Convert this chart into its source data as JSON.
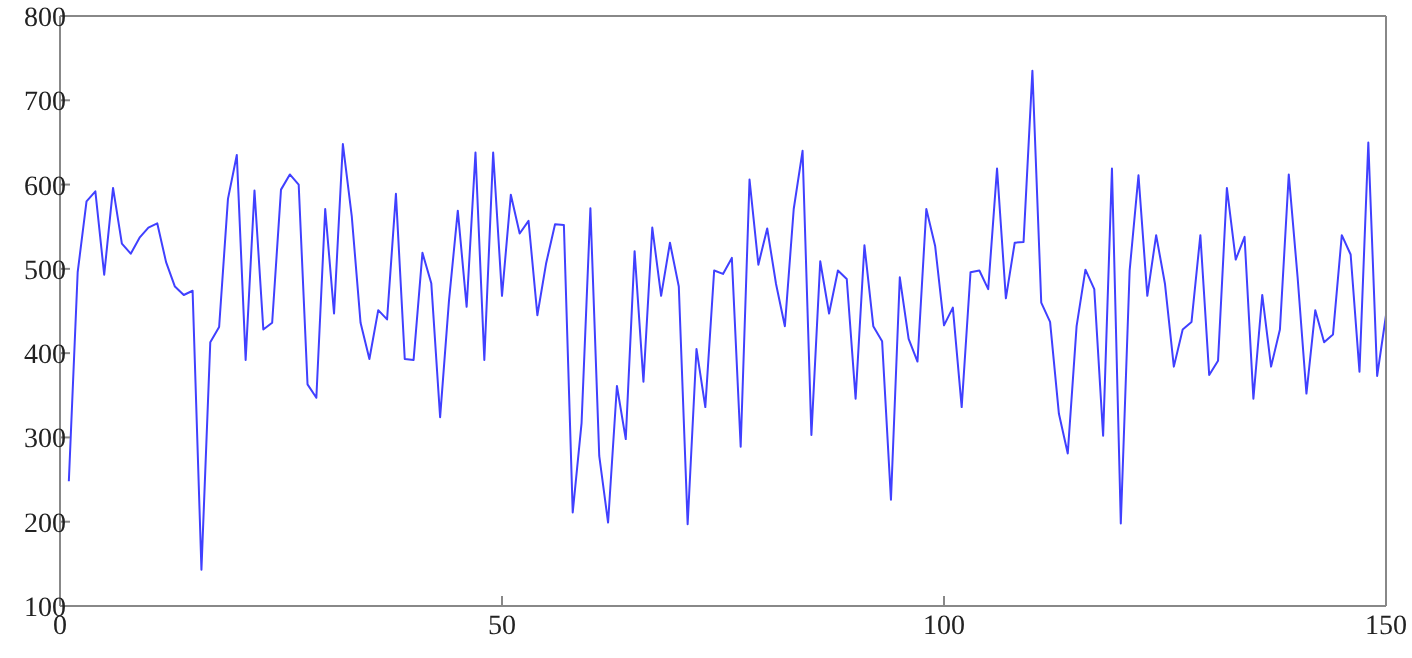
{
  "chart_data": {
    "type": "line",
    "x": [
      1,
      2,
      3,
      4,
      5,
      6,
      7,
      8,
      9,
      10,
      11,
      12,
      13,
      14,
      15,
      16,
      17,
      18,
      19,
      20,
      21,
      22,
      23,
      24,
      25,
      26,
      27,
      28,
      29,
      30,
      31,
      32,
      33,
      34,
      35,
      36,
      37,
      38,
      39,
      40,
      41,
      42,
      43,
      44,
      45,
      46,
      47,
      48,
      49,
      50,
      51,
      52,
      53,
      54,
      55,
      56,
      57,
      58,
      59,
      60,
      61,
      62,
      63,
      64,
      65,
      66,
      67,
      68,
      69,
      70,
      71,
      72,
      73,
      74,
      75,
      76,
      77,
      78,
      79,
      80,
      81,
      82,
      83,
      84,
      85,
      86,
      87,
      88,
      89,
      90,
      91,
      92,
      93,
      94,
      95,
      96,
      97,
      98,
      99,
      100,
      101,
      102,
      103,
      104,
      105,
      106,
      107,
      108,
      109,
      110,
      111,
      112,
      113,
      114,
      115,
      116,
      117,
      118,
      119,
      120,
      121,
      122,
      123,
      124,
      125,
      126,
      127,
      128,
      129,
      130,
      131,
      132,
      133,
      134,
      135,
      136,
      137,
      138,
      139,
      140,
      141,
      142,
      143,
      144,
      145,
      146,
      147,
      148,
      149,
      150
    ],
    "series": [
      {
        "color": "#4040ff",
        "values": [
          248,
          496,
          580,
          592,
          493,
          596,
          530,
          518,
          537,
          549,
          554,
          508,
          479,
          469,
          474,
          143,
          413,
          431,
          583,
          635,
          392,
          593,
          428,
          436,
          594,
          612,
          600,
          363,
          347,
          571,
          447,
          648,
          563,
          436,
          393,
          451,
          440,
          589,
          393,
          392,
          519,
          483,
          324,
          462,
          569,
          455,
          638,
          392,
          638,
          468,
          588,
          542,
          557,
          445,
          507,
          553,
          552,
          211,
          317,
          572,
          278,
          199,
          361,
          298,
          521,
          366,
          549,
          468,
          531,
          479,
          197,
          405,
          336,
          498,
          494,
          513,
          289,
          606,
          505,
          548,
          482,
          432,
          571,
          640,
          303,
          509,
          447,
          498,
          488,
          346,
          528,
          432,
          414,
          226,
          490,
          417,
          390,
          571,
          527,
          433,
          454,
          336,
          496,
          498,
          476,
          619,
          465,
          531,
          532,
          735,
          460,
          437,
          328,
          281,
          432,
          499,
          476,
          302,
          619,
          198,
          498,
          611,
          468,
          540,
          482,
          384,
          428,
          437,
          540,
          374,
          391,
          596,
          511,
          538,
          346,
          469,
          384,
          428,
          612,
          490,
          352,
          451,
          413,
          422,
          540,
          517,
          378,
          650,
          373,
          445
        ]
      }
    ],
    "xlim": [
      0,
      150
    ],
    "xticks": [
      0,
      50,
      100,
      150
    ],
    "ylim": [
      100,
      800
    ],
    "yticks": [
      100,
      200,
      300,
      400,
      500,
      600,
      700,
      800
    ],
    "grid": false,
    "legend": false,
    "marker": "none",
    "line_style": "solid"
  }
}
